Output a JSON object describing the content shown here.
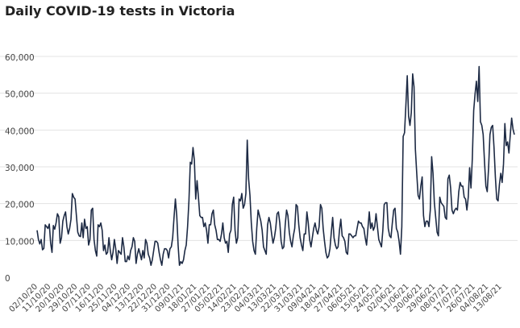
{
  "chart_data": {
    "type": "line",
    "title": "Daily COVID-19 tests in Victoria",
    "xlabel": "",
    "ylabel": "",
    "ylim": [
      0,
      60000
    ],
    "yticks": [
      0,
      10000,
      20000,
      30000,
      40000,
      50000,
      60000
    ],
    "ytick_labels": [
      "0",
      "10,000",
      "20,000",
      "30,000",
      "40,000",
      "50,000",
      "60,000"
    ],
    "x_tick_labels": [
      "02/10/20",
      "11/10/20",
      "20/10/20",
      "29/10/20",
      "07/11/20",
      "16/11/20",
      "25/11/20",
      "04/12/20",
      "13/12/20",
      "22/12/20",
      "31/12/20",
      "09/01/21",
      "18/01/21",
      "27/01/21",
      "05/02/21",
      "14/02/21",
      "23/02/21",
      "04/03/21",
      "13/03/21",
      "22/03/21",
      "31/03/21",
      "09/04/21",
      "18/04/21",
      "27/04/21",
      "06/05/21",
      "15/05/21",
      "24/05/21",
      "02/06/21",
      "11/06/21",
      "20/06/21",
      "29/06/21",
      "08/07/21",
      "17/07/21",
      "26/07/21",
      "04/08/21",
      "13/08/21"
    ],
    "grid": true,
    "legend": "none",
    "color": "#1d2a44",
    "series": [
      {
        "values": [
          14500,
          12000,
          10800,
          12000,
          9200,
          9600,
          16000,
          15500,
          15000,
          16200,
          11000,
          8500,
          15800,
          14800,
          16500,
          19000,
          18200,
          11000,
          12500,
          17000,
          18500,
          19500,
          15500,
          13500,
          15000,
          17500,
          24500,
          23500,
          23000,
          18500,
          14000,
          13000,
          12800,
          16500,
          12500,
          17500,
          15000,
          15500,
          10500,
          12000,
          20000,
          20500,
          12000,
          9000,
          7500,
          16000,
          15500,
          16500,
          14500,
          9000,
          10500,
          8000,
          8500,
          12500,
          9000,
          6500,
          8500,
          12000,
          9500,
          5500,
          9000,
          8500,
          8000,
          12500,
          10000,
          6000,
          6000,
          7500,
          6500,
          9000,
          10000,
          12500,
          11500,
          5500,
          8000,
          9500,
          8000,
          6500,
          9000,
          7000,
          12000,
          11000,
          8000,
          7000,
          5000,
          6500,
          9000,
          11500,
          11500,
          11000,
          8500,
          6500,
          5000,
          8000,
          9500,
          9500,
          9000,
          7000,
          9500,
          10000,
          12500,
          18000,
          23000,
          18500,
          10500,
          5000,
          6000,
          5500,
          6500,
          9000,
          10500,
          15500,
          22500,
          33000,
          32500,
          37000,
          33500,
          23000,
          28000,
          23500,
          18500,
          18000,
          18000,
          15500,
          16500,
          14500,
          11000,
          16000,
          16000,
          19000,
          20000,
          16000,
          14500,
          12000,
          12000,
          11500,
          13500,
          16500,
          12500,
          11000,
          11500,
          8500,
          13500,
          14500,
          21500,
          23500,
          14500,
          11000,
          12500,
          23000,
          22500,
          24500,
          20500,
          21500,
          24500,
          39000,
          28500,
          24000,
          16500,
          11500,
          9000,
          8000,
          15000,
          20000,
          18500,
          17000,
          14500,
          10000,
          9000,
          8000,
          16000,
          18000,
          16500,
          13500,
          11000,
          12500,
          15000,
          19000,
          19500,
          16500,
          11500,
          9500,
          10000,
          16000,
          20000,
          18500,
          14000,
          11500,
          10000,
          13000,
          15000,
          21500,
          21000,
          16000,
          12500,
          10500,
          9000,
          13500,
          13500,
          19500,
          16500,
          12000,
          10000,
          12500,
          15000,
          16500,
          14500,
          13500,
          15500,
          21500,
          20500,
          15000,
          11500,
          8500,
          7000,
          7500,
          9500,
          14000,
          18000,
          12500,
          10500,
          9500,
          10000,
          14500,
          17500,
          13000,
          12500,
          11500,
          8500,
          8000,
          13500,
          13500,
          13000,
          12500,
          13000,
          13000,
          15000,
          17000,
          16500,
          16500,
          15500,
          15000,
          12500,
          10500,
          15000,
          19500,
          15000,
          16500,
          14500,
          15500,
          19000,
          15500,
          12000,
          11000,
          10000,
          14500,
          21500,
          22000,
          22000,
          15000,
          13000,
          12500,
          16500,
          20000,
          20500,
          15000,
          14000,
          11500,
          8000,
          15500,
          40000,
          41000,
          48500,
          56500,
          45500,
          43000,
          46500,
          57000,
          53500,
          36500,
          30000,
          24000,
          23000,
          26500,
          29000,
          18500,
          15500,
          17000,
          17000,
          15500,
          20000,
          34500,
          30000,
          22000,
          18000,
          14000,
          13000,
          23500,
          22000,
          21500,
          21000,
          18000,
          17500,
          28500,
          29500,
          26000,
          20000,
          19000,
          20000,
          20500,
          20000,
          25000,
          27500,
          26500,
          26500,
          23500,
          23000,
          20000,
          23500,
          31500,
          26000,
          34000,
          47000,
          51500,
          55000,
          49500,
          59000,
          44000,
          43000,
          40500,
          33000,
          26500,
          25000,
          31500,
          40500,
          42500,
          43000,
          37000,
          29000,
          23000,
          22500,
          27000,
          30000,
          27500,
          32500,
          43500,
          37500,
          38500,
          35500,
          40500,
          45000,
          42000,
          40500
        ]
      }
    ]
  }
}
